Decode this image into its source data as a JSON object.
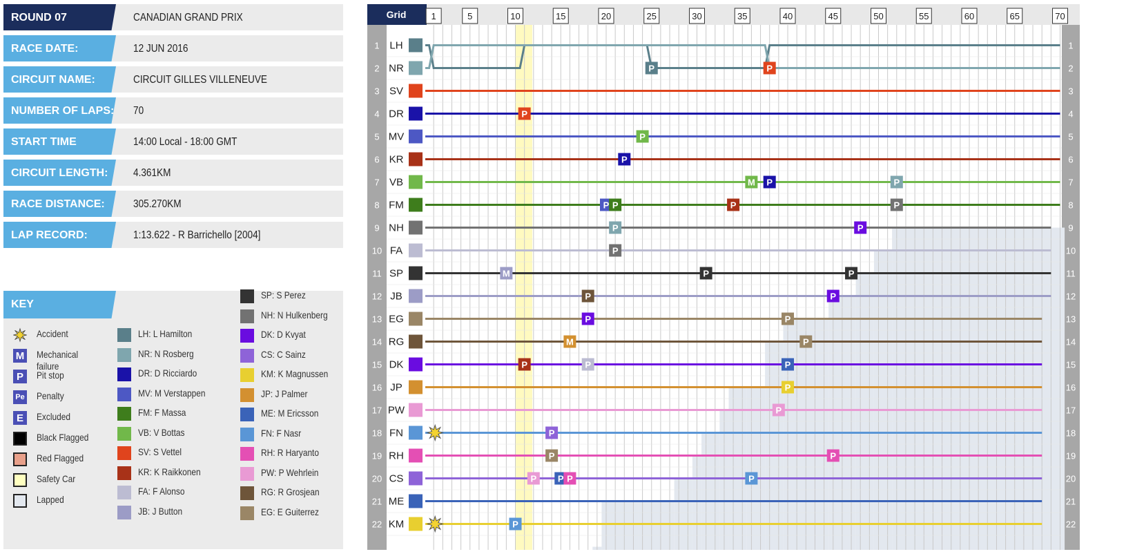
{
  "info": [
    {
      "label": "ROUND 07",
      "value": "CANADIAN GRAND PRIX"
    },
    {
      "label": "RACE DATE:",
      "value": "12 JUN 2016"
    },
    {
      "label": "CIRCUIT NAME:",
      "value": "CIRCUIT GILLES VILLENEUVE"
    },
    {
      "label": "NUMBER OF LAPS:",
      "value": "70"
    },
    {
      "label": "START TIME",
      "value": "14:00 Local - 18:00 GMT"
    },
    {
      "label": "CIRCUIT LENGTH:",
      "value": "4.361KM"
    },
    {
      "label": "RACE DISTANCE:",
      "value": "305.270KM"
    },
    {
      "label": "LAP RECORD:",
      "value": "1:13.622 - R Barrichello [2004]"
    }
  ],
  "key": {
    "title": "KEY",
    "symbols": [
      {
        "label": "Accident",
        "icon": "star-burst-icon"
      },
      {
        "label": "Mechanical failure",
        "icon": "M",
        "color": "#4a4fb5"
      },
      {
        "label": "Pit stop",
        "icon": "P",
        "color": "#4a4fb5"
      },
      {
        "label": "Penalty",
        "icon": "Pe",
        "color": "#4a4fb5"
      },
      {
        "label": "Excluded",
        "icon": "E",
        "color": "#4a4fb5"
      },
      {
        "label": "Black Flagged",
        "icon": "black-square-icon",
        "color": "#000000"
      },
      {
        "label": "Red Flagged",
        "icon": "red-square-icon",
        "color": "#e8a08a"
      },
      {
        "label": "Safety Car",
        "icon": "yellow-square-icon",
        "color": "#ffffc0"
      },
      {
        "label": "Lapped",
        "icon": "grey-square-icon",
        "color": "#e3e8ef"
      }
    ]
  },
  "chart_data": {
    "type": "line",
    "title": "",
    "grid_label": "Grid",
    "x_ticks": [
      "1",
      "5",
      "10",
      "15",
      "20",
      "25",
      "30",
      "35",
      "40",
      "45",
      "50",
      "55",
      "60",
      "65",
      "70"
    ],
    "positions": [
      "1",
      "2",
      "3",
      "4",
      "5",
      "6",
      "7",
      "8",
      "9",
      "10",
      "11",
      "12",
      "13",
      "14",
      "15",
      "16",
      "17",
      "18",
      "19",
      "20",
      "21",
      "22"
    ],
    "laps": 70,
    "safety_car_laps": [
      11
    ],
    "drivers": [
      {
        "code": "LH",
        "name": "LH: L Hamilton",
        "color": "#5a7f8a",
        "grid": 1
      },
      {
        "code": "NR",
        "name": "NR: N Rosberg",
        "color": "#7fa6ae",
        "grid": 2
      },
      {
        "code": "SV",
        "name": "SV: S Vettel",
        "color": "#e0441d",
        "grid": 3
      },
      {
        "code": "DR",
        "name": "DR: D Ricciardo",
        "color": "#1a12a8",
        "grid": 4
      },
      {
        "code": "MV",
        "name": "MV: M Verstappen",
        "color": "#4d58c4",
        "grid": 5
      },
      {
        "code": "KR",
        "name": "KR: K Raikkonen",
        "color": "#a83218",
        "grid": 6
      },
      {
        "code": "VB",
        "name": "VB: V Bottas",
        "color": "#71b84a",
        "grid": 7
      },
      {
        "code": "FM",
        "name": "FM: F Massa",
        "color": "#3e7d1c",
        "grid": 8
      },
      {
        "code": "NH",
        "name": "NH: N Hulkenberg",
        "color": "#727272",
        "grid": 9
      },
      {
        "code": "FA",
        "name": "FA: F Alonso",
        "color": "#bcbcd2",
        "grid": 10
      },
      {
        "code": "SP",
        "name": "SP: S Perez",
        "color": "#333333",
        "grid": 11
      },
      {
        "code": "JB",
        "name": "JB: J Button",
        "color": "#9c9cc6",
        "grid": 12
      },
      {
        "code": "EG",
        "name": "EG: E Guiterrez",
        "color": "#9a8666",
        "grid": 13
      },
      {
        "code": "RG",
        "name": "RG: R Grosjean",
        "color": "#6e553a",
        "grid": 14
      },
      {
        "code": "DK",
        "name": "DK: D Kvyat",
        "color": "#6a0ce0",
        "grid": 15
      },
      {
        "code": "JP",
        "name": "JP: J Palmer",
        "color": "#d39030",
        "grid": 16
      },
      {
        "code": "PW",
        "name": "PW: P Wehrlein",
        "color": "#e99ad4",
        "grid": 17
      },
      {
        "code": "FN",
        "name": "FN: F Nasr",
        "color": "#5a96d6",
        "grid": 18
      },
      {
        "code": "RH",
        "name": "RH: R Haryanto",
        "color": "#e44fb4",
        "grid": 19
      },
      {
        "code": "CS",
        "name": "CS: C Sainz",
        "color": "#8e63d8",
        "grid": 20
      },
      {
        "code": "ME",
        "name": "ME: M Ericsson",
        "color": "#3a63b8",
        "grid": 21
      },
      {
        "code": "KM",
        "name": "KM: K Magnussen",
        "color": "#e8cf30",
        "grid": 22
      }
    ],
    "key_drivers_left": [
      "LH",
      "NR",
      "DR",
      "MV",
      "FM",
      "VB",
      "SV",
      "KR",
      "FA",
      "JB"
    ],
    "key_drivers_right": [
      "SP",
      "NH",
      "DK",
      "CS",
      "KM",
      "JP",
      "ME",
      "FN",
      "RH",
      "PW",
      "RG",
      "EG"
    ],
    "series": [
      {
        "code": "LH",
        "points": [
          [
            0,
            1
          ],
          [
            1,
            2
          ],
          [
            10,
            2
          ],
          [
            11,
            1
          ],
          [
            24,
            1
          ],
          [
            25,
            2
          ],
          [
            37,
            2
          ],
          [
            38,
            1
          ],
          [
            70,
            1
          ]
        ]
      },
      {
        "code": "NR",
        "points": [
          [
            0,
            2
          ],
          [
            1,
            1
          ],
          [
            24,
            1
          ],
          [
            25,
            1
          ],
          [
            37,
            1
          ],
          [
            38,
            2
          ],
          [
            70,
            2
          ]
        ]
      }
    ],
    "events": [
      {
        "type": "P",
        "driver": "LH",
        "lap": 25,
        "pos": 2
      },
      {
        "type": "P",
        "driver": "SV",
        "lap": 38,
        "pos": 2
      },
      {
        "type": "P",
        "driver": "SV",
        "lap": 11,
        "pos": 4
      },
      {
        "type": "P",
        "driver": "VB",
        "lap": 24,
        "pos": 5
      },
      {
        "type": "P",
        "driver": "DR",
        "lap": 22,
        "pos": 6
      },
      {
        "type": "M",
        "driver": "VB",
        "lap": 36,
        "pos": 7
      },
      {
        "type": "P",
        "driver": "DR",
        "lap": 38,
        "pos": 7
      },
      {
        "type": "P",
        "driver": "NR",
        "lap": 52,
        "pos": 7
      },
      {
        "type": "P",
        "driver": "MV",
        "lap": 20,
        "pos": 8
      },
      {
        "type": "P",
        "driver": "FM",
        "lap": 21,
        "pos": 8
      },
      {
        "type": "P",
        "driver": "KR",
        "lap": 34,
        "pos": 8
      },
      {
        "type": "P",
        "driver": "NH",
        "lap": 52,
        "pos": 8
      },
      {
        "type": "P",
        "driver": "NR",
        "lap": 21,
        "pos": 9
      },
      {
        "type": "P",
        "driver": "DK",
        "lap": 48,
        "pos": 9
      },
      {
        "type": "P",
        "driver": "NH",
        "lap": 21,
        "pos": 10
      },
      {
        "type": "M",
        "driver": "JB",
        "lap": 9,
        "pos": 11
      },
      {
        "type": "P",
        "driver": "SP",
        "lap": 31,
        "pos": 11
      },
      {
        "type": "P",
        "driver": "SP",
        "lap": 47,
        "pos": 11
      },
      {
        "type": "P",
        "driver": "RG",
        "lap": 18,
        "pos": 12
      },
      {
        "type": "P",
        "driver": "DK",
        "lap": 45,
        "pos": 12
      },
      {
        "type": "P",
        "driver": "DK",
        "lap": 18,
        "pos": 13
      },
      {
        "type": "P",
        "driver": "EG",
        "lap": 40,
        "pos": 13
      },
      {
        "type": "M",
        "driver": "JP",
        "lap": 16,
        "pos": 14
      },
      {
        "type": "P",
        "driver": "EG",
        "lap": 42,
        "pos": 14
      },
      {
        "type": "P",
        "driver": "KR",
        "lap": 11,
        "pos": 15
      },
      {
        "type": "P",
        "driver": "FA",
        "lap": 18,
        "pos": 15
      },
      {
        "type": "P",
        "driver": "ME",
        "lap": 40,
        "pos": 15
      },
      {
        "type": "P",
        "driver": "KM",
        "lap": 40,
        "pos": 16
      },
      {
        "type": "P",
        "driver": "PW",
        "lap": 39,
        "pos": 17
      },
      {
        "type": "P",
        "driver": "CS",
        "lap": 14,
        "pos": 18
      },
      {
        "type": "P",
        "driver": "EG",
        "lap": 14,
        "pos": 19
      },
      {
        "type": "P",
        "driver": "RH",
        "lap": 45,
        "pos": 19
      },
      {
        "type": "P",
        "driver": "PW",
        "lap": 12,
        "pos": 20
      },
      {
        "type": "P",
        "driver": "ME",
        "lap": 15,
        "pos": 20
      },
      {
        "type": "P",
        "driver": "RH",
        "lap": 16,
        "pos": 20
      },
      {
        "type": "P",
        "driver": "FN",
        "lap": 36,
        "pos": 20
      },
      {
        "type": "P",
        "driver": "FN",
        "lap": 10,
        "pos": 22
      },
      {
        "type": "accident",
        "driver": "FN",
        "lap": 1,
        "pos": 18
      },
      {
        "type": "accident",
        "driver": "KM",
        "lap": 1,
        "pos": 22
      }
    ]
  }
}
